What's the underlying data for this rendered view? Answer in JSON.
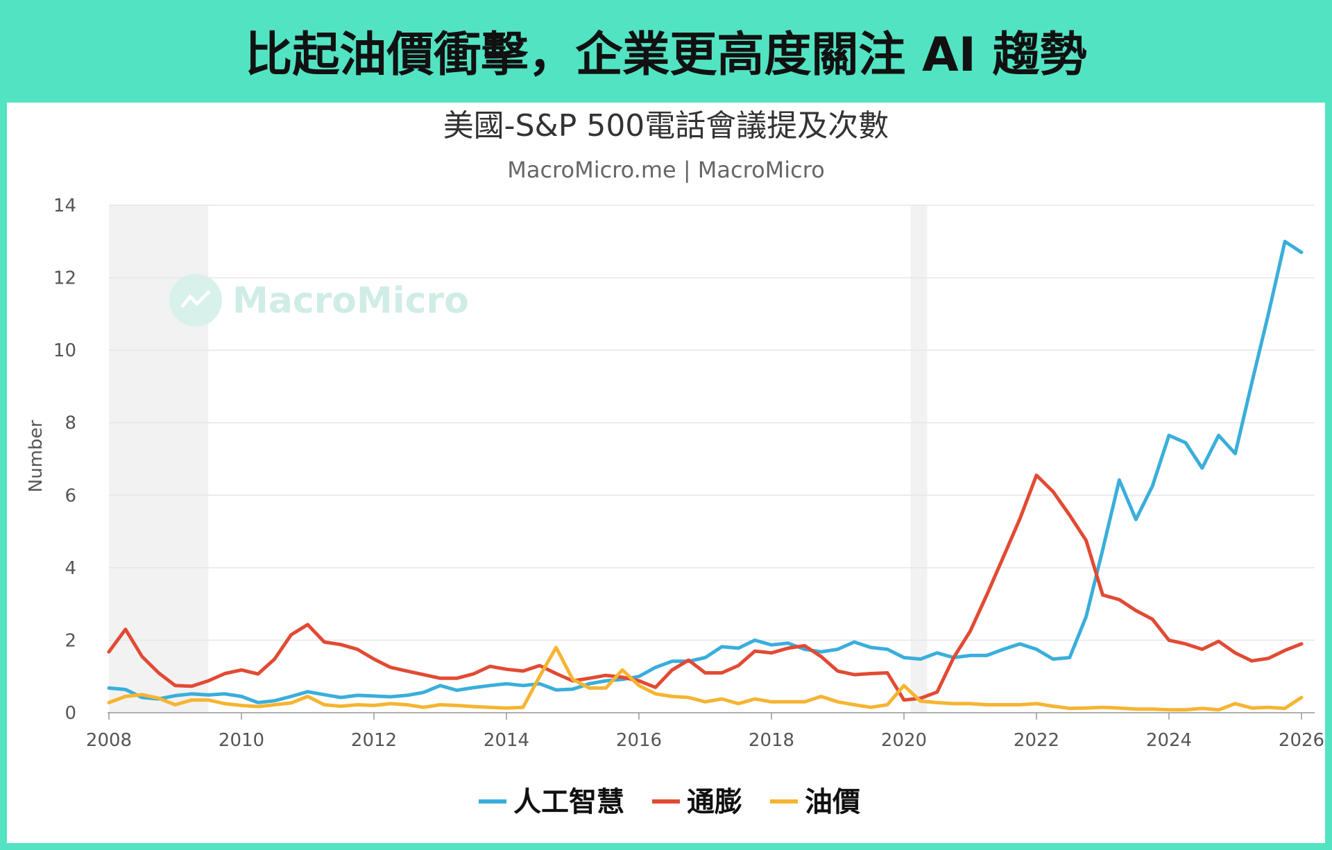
{
  "headline": "比起油價衝擊，企業更高度關注 AI 趨勢",
  "watermark": "MacroMicro",
  "chart_data": {
    "type": "line",
    "title": "美國-S&P 500電話會議提及次數",
    "subtitle": "MacroMicro.me | MacroMicro",
    "ylabel": "Number",
    "xlabel": "",
    "xlim": [
      2008,
      2026.1
    ],
    "ylim": [
      0,
      14
    ],
    "yticks": [
      0,
      2,
      4,
      6,
      8,
      10,
      12,
      14
    ],
    "xticks": [
      2008,
      2010,
      2012,
      2014,
      2016,
      2018,
      2020,
      2022,
      2024,
      2026
    ],
    "grid": true,
    "legend_position": "bottom",
    "shaded_periods": [
      [
        2008.0,
        2009.5
      ],
      [
        2020.1,
        2020.35
      ]
    ],
    "series": [
      {
        "name": "人工智慧",
        "color": "#3aaedb",
        "points": [
          [
            2008.0,
            0.68
          ],
          [
            2008.25,
            0.64
          ],
          [
            2008.5,
            0.42
          ],
          [
            2008.75,
            0.38
          ],
          [
            2009.0,
            0.47
          ],
          [
            2009.25,
            0.52
          ],
          [
            2009.5,
            0.49
          ],
          [
            2009.75,
            0.52
          ],
          [
            2010.0,
            0.45
          ],
          [
            2010.25,
            0.28
          ],
          [
            2010.5,
            0.33
          ],
          [
            2010.75,
            0.45
          ],
          [
            2011.0,
            0.58
          ],
          [
            2011.25,
            0.5
          ],
          [
            2011.5,
            0.42
          ],
          [
            2011.75,
            0.48
          ],
          [
            2012.0,
            0.46
          ],
          [
            2012.25,
            0.44
          ],
          [
            2012.5,
            0.48
          ],
          [
            2012.75,
            0.56
          ],
          [
            2013.0,
            0.75
          ],
          [
            2013.25,
            0.62
          ],
          [
            2013.5,
            0.69
          ],
          [
            2013.75,
            0.75
          ],
          [
            2014.0,
            0.8
          ],
          [
            2014.25,
            0.75
          ],
          [
            2014.5,
            0.8
          ],
          [
            2014.75,
            0.63
          ],
          [
            2015.0,
            0.65
          ],
          [
            2015.25,
            0.8
          ],
          [
            2015.5,
            0.88
          ],
          [
            2015.75,
            0.92
          ],
          [
            2016.0,
            1.0
          ],
          [
            2016.25,
            1.25
          ],
          [
            2016.5,
            1.42
          ],
          [
            2016.75,
            1.42
          ],
          [
            2017.0,
            1.52
          ],
          [
            2017.25,
            1.82
          ],
          [
            2017.5,
            1.78
          ],
          [
            2017.75,
            2.0
          ],
          [
            2018.0,
            1.87
          ],
          [
            2018.25,
            1.92
          ],
          [
            2018.5,
            1.75
          ],
          [
            2018.75,
            1.68
          ],
          [
            2019.0,
            1.75
          ],
          [
            2019.25,
            1.95
          ],
          [
            2019.5,
            1.8
          ],
          [
            2019.75,
            1.75
          ],
          [
            2020.0,
            1.52
          ],
          [
            2020.25,
            1.48
          ],
          [
            2020.5,
            1.65
          ],
          [
            2020.75,
            1.52
          ],
          [
            2021.0,
            1.58
          ],
          [
            2021.25,
            1.58
          ],
          [
            2021.5,
            1.75
          ],
          [
            2021.75,
            1.9
          ],
          [
            2022.0,
            1.75
          ],
          [
            2022.25,
            1.48
          ],
          [
            2022.5,
            1.52
          ],
          [
            2022.75,
            2.65
          ],
          [
            2023.0,
            4.5
          ],
          [
            2023.25,
            6.42
          ],
          [
            2023.5,
            5.33
          ],
          [
            2023.75,
            6.25
          ],
          [
            2024.0,
            7.65
          ],
          [
            2024.25,
            7.45
          ],
          [
            2024.5,
            6.75
          ],
          [
            2024.75,
            7.65
          ],
          [
            2025.0,
            7.15
          ],
          [
            2025.25,
            9.1
          ],
          [
            2025.5,
            11.0
          ],
          [
            2025.75,
            13.0
          ],
          [
            2026.0,
            12.7
          ]
        ]
      },
      {
        "name": "通膨",
        "color": "#e24a33",
        "points": [
          [
            2008.0,
            1.68
          ],
          [
            2008.25,
            2.3
          ],
          [
            2008.5,
            1.55
          ],
          [
            2008.75,
            1.1
          ],
          [
            2009.0,
            0.75
          ],
          [
            2009.25,
            0.73
          ],
          [
            2009.5,
            0.88
          ],
          [
            2009.75,
            1.08
          ],
          [
            2010.0,
            1.18
          ],
          [
            2010.25,
            1.07
          ],
          [
            2010.5,
            1.48
          ],
          [
            2010.75,
            2.15
          ],
          [
            2011.0,
            2.43
          ],
          [
            2011.25,
            1.95
          ],
          [
            2011.5,
            1.88
          ],
          [
            2011.75,
            1.75
          ],
          [
            2012.0,
            1.48
          ],
          [
            2012.25,
            1.25
          ],
          [
            2012.5,
            1.15
          ],
          [
            2012.75,
            1.05
          ],
          [
            2013.0,
            0.95
          ],
          [
            2013.25,
            0.95
          ],
          [
            2013.5,
            1.07
          ],
          [
            2013.75,
            1.28
          ],
          [
            2014.0,
            1.2
          ],
          [
            2014.25,
            1.15
          ],
          [
            2014.5,
            1.3
          ],
          [
            2014.75,
            1.08
          ],
          [
            2015.0,
            0.88
          ],
          [
            2015.25,
            0.95
          ],
          [
            2015.5,
            1.03
          ],
          [
            2015.75,
            0.98
          ],
          [
            2016.0,
            0.88
          ],
          [
            2016.25,
            0.7
          ],
          [
            2016.5,
            1.18
          ],
          [
            2016.75,
            1.45
          ],
          [
            2017.0,
            1.1
          ],
          [
            2017.25,
            1.1
          ],
          [
            2017.5,
            1.3
          ],
          [
            2017.75,
            1.7
          ],
          [
            2018.0,
            1.65
          ],
          [
            2018.25,
            1.78
          ],
          [
            2018.5,
            1.85
          ],
          [
            2018.75,
            1.55
          ],
          [
            2019.0,
            1.15
          ],
          [
            2019.25,
            1.05
          ],
          [
            2019.5,
            1.08
          ],
          [
            2019.75,
            1.1
          ],
          [
            2020.0,
            0.35
          ],
          [
            2020.25,
            0.4
          ],
          [
            2020.5,
            0.57
          ],
          [
            2020.75,
            1.52
          ],
          [
            2021.0,
            2.25
          ],
          [
            2021.25,
            3.25
          ],
          [
            2021.5,
            4.3
          ],
          [
            2021.75,
            5.35
          ],
          [
            2022.0,
            6.55
          ],
          [
            2022.25,
            6.1
          ],
          [
            2022.5,
            5.45
          ],
          [
            2022.75,
            4.75
          ],
          [
            2023.0,
            3.25
          ],
          [
            2023.25,
            3.12
          ],
          [
            2023.5,
            2.82
          ],
          [
            2023.75,
            2.58
          ],
          [
            2024.0,
            2.0
          ],
          [
            2024.25,
            1.9
          ],
          [
            2024.5,
            1.75
          ],
          [
            2024.75,
            1.97
          ],
          [
            2025.0,
            1.65
          ],
          [
            2025.25,
            1.43
          ],
          [
            2025.5,
            1.5
          ],
          [
            2025.75,
            1.72
          ],
          [
            2026.0,
            1.9
          ]
        ]
      },
      {
        "name": "油價",
        "color": "#f6b431",
        "points": [
          [
            2008.0,
            0.28
          ],
          [
            2008.25,
            0.45
          ],
          [
            2008.5,
            0.5
          ],
          [
            2008.75,
            0.4
          ],
          [
            2009.0,
            0.22
          ],
          [
            2009.25,
            0.35
          ],
          [
            2009.5,
            0.35
          ],
          [
            2009.75,
            0.25
          ],
          [
            2010.0,
            0.2
          ],
          [
            2010.25,
            0.17
          ],
          [
            2010.5,
            0.22
          ],
          [
            2010.75,
            0.27
          ],
          [
            2011.0,
            0.45
          ],
          [
            2011.25,
            0.22
          ],
          [
            2011.5,
            0.18
          ],
          [
            2011.75,
            0.22
          ],
          [
            2012.0,
            0.2
          ],
          [
            2012.25,
            0.25
          ],
          [
            2012.5,
            0.22
          ],
          [
            2012.75,
            0.15
          ],
          [
            2013.0,
            0.22
          ],
          [
            2013.25,
            0.2
          ],
          [
            2013.5,
            0.17
          ],
          [
            2013.75,
            0.15
          ],
          [
            2014.0,
            0.13
          ],
          [
            2014.25,
            0.15
          ],
          [
            2014.5,
            1.0
          ],
          [
            2014.75,
            1.8
          ],
          [
            2015.0,
            0.92
          ],
          [
            2015.25,
            0.68
          ],
          [
            2015.5,
            0.68
          ],
          [
            2015.75,
            1.18
          ],
          [
            2016.0,
            0.75
          ],
          [
            2016.25,
            0.52
          ],
          [
            2016.5,
            0.45
          ],
          [
            2016.75,
            0.42
          ],
          [
            2017.0,
            0.3
          ],
          [
            2017.25,
            0.38
          ],
          [
            2017.5,
            0.25
          ],
          [
            2017.75,
            0.38
          ],
          [
            2018.0,
            0.3
          ],
          [
            2018.25,
            0.3
          ],
          [
            2018.5,
            0.3
          ],
          [
            2018.75,
            0.45
          ],
          [
            2019.0,
            0.3
          ],
          [
            2019.25,
            0.22
          ],
          [
            2019.5,
            0.15
          ],
          [
            2019.75,
            0.22
          ],
          [
            2020.0,
            0.75
          ],
          [
            2020.25,
            0.32
          ],
          [
            2020.5,
            0.28
          ],
          [
            2020.75,
            0.25
          ],
          [
            2021.0,
            0.25
          ],
          [
            2021.25,
            0.22
          ],
          [
            2021.5,
            0.22
          ],
          [
            2021.75,
            0.22
          ],
          [
            2022.0,
            0.25
          ],
          [
            2022.25,
            0.18
          ],
          [
            2022.5,
            0.12
          ],
          [
            2022.75,
            0.13
          ],
          [
            2023.0,
            0.15
          ],
          [
            2023.25,
            0.13
          ],
          [
            2023.5,
            0.1
          ],
          [
            2023.75,
            0.1
          ],
          [
            2024.0,
            0.08
          ],
          [
            2024.25,
            0.08
          ],
          [
            2024.5,
            0.12
          ],
          [
            2024.75,
            0.08
          ],
          [
            2025.0,
            0.25
          ],
          [
            2025.25,
            0.13
          ],
          [
            2025.5,
            0.15
          ],
          [
            2025.75,
            0.12
          ],
          [
            2026.0,
            0.42
          ]
        ]
      }
    ]
  }
}
